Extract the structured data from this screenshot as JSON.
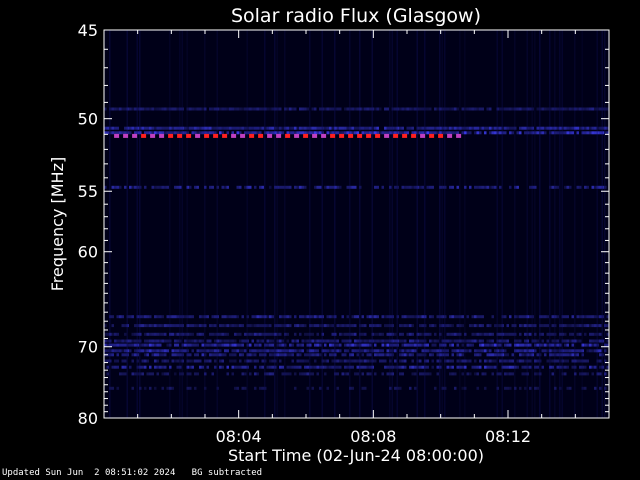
{
  "chart_data": {
    "type": "heatmap",
    "title": "Solar radio Flux (Glasgow)",
    "xlabel": "Start Time (02-Jun-24 08:00:00)",
    "ylabel": "Frequency [MHz]",
    "x_start": "08:00:00",
    "x_range_minutes": [
      0,
      15
    ],
    "x_ticks": [
      {
        "minute": 4,
        "label": "08:04"
      },
      {
        "minute": 8,
        "label": "08:08"
      },
      {
        "minute": 12,
        "label": "08:12"
      }
    ],
    "y_range_mhz": [
      45,
      80
    ],
    "y_scale": "reciprocal",
    "y_ticks": [
      {
        "value": 45,
        "label": "45"
      },
      {
        "value": 50,
        "label": "50"
      },
      {
        "value": 55,
        "label": "55"
      },
      {
        "value": 60,
        "label": "60"
      },
      {
        "value": 70,
        "label": "70"
      },
      {
        "value": 80,
        "label": "80"
      }
    ],
    "grid": false,
    "colors": {
      "background": "#000000",
      "plot_background": "#000018",
      "weak_emission": "#2020c0",
      "medium_emission": "#4040ff",
      "strong_emission": "#ff2020",
      "axis": "#ffffff"
    },
    "bands": [
      {
        "freq_mhz": 49.4,
        "intensity": 0.3,
        "coverage": 0.9
      },
      {
        "freq_mhz": 50.6,
        "intensity": 0.6,
        "coverage": 0.95
      },
      {
        "freq_mhz": 50.9,
        "intensity": 0.8,
        "coverage": 0.9
      },
      {
        "freq_mhz": 54.7,
        "intensity": 0.5,
        "coverage": 0.6
      },
      {
        "freq_mhz": 66.5,
        "intensity": 0.45,
        "coverage": 0.85
      },
      {
        "freq_mhz": 67.5,
        "intensity": 0.35,
        "coverage": 0.8
      },
      {
        "freq_mhz": 68.5,
        "intensity": 0.35,
        "coverage": 0.8
      },
      {
        "freq_mhz": 69.3,
        "intensity": 0.4,
        "coverage": 0.85
      },
      {
        "freq_mhz": 69.8,
        "intensity": 0.7,
        "coverage": 0.8
      },
      {
        "freq_mhz": 70.5,
        "intensity": 0.55,
        "coverage": 0.85
      },
      {
        "freq_mhz": 71.0,
        "intensity": 0.5,
        "coverage": 0.75
      },
      {
        "freq_mhz": 71.8,
        "intensity": 0.35,
        "coverage": 0.7
      },
      {
        "freq_mhz": 72.6,
        "intensity": 0.6,
        "coverage": 0.7
      },
      {
        "freq_mhz": 73.5,
        "intensity": 0.3,
        "coverage": 0.5
      },
      {
        "freq_mhz": 75.5,
        "intensity": 0.2,
        "coverage": 0.4
      }
    ],
    "burst": {
      "freq_mhz": 51.1,
      "minute_start": 0.3,
      "minute_end": 10.5,
      "color": "strong_emission"
    }
  },
  "footer": {
    "updated": "Updated Sun Jun  2 08:51:02 2024",
    "note": "BG subtracted"
  }
}
